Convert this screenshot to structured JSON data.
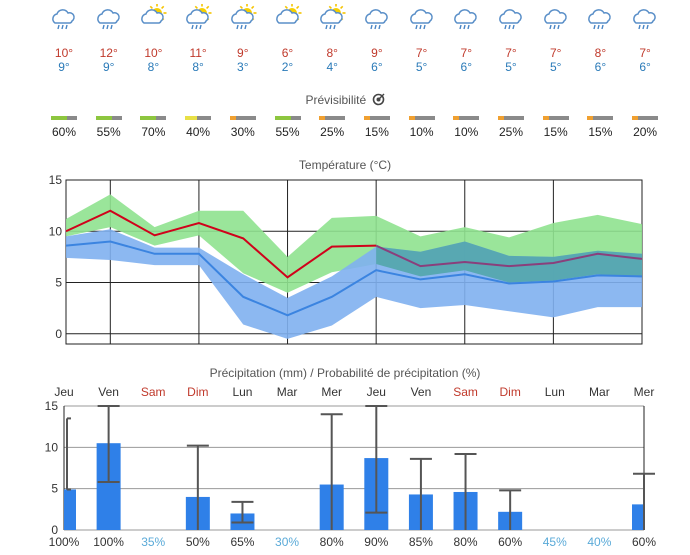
{
  "days": [
    "Jeu",
    "Ven",
    "Sam",
    "Dim",
    "Lun",
    "Mar",
    "Mer",
    "Jeu",
    "Ven",
    "Sam",
    "Dim",
    "Lun",
    "Mar",
    "Mer"
  ],
  "icons": [
    "rain-cloud",
    "rain-cloud",
    "sun-cloud",
    "sun-rain-cloud",
    "sun-rain-cloud",
    "sun-cloud",
    "sun-rain-cloud",
    "rain-cloud",
    "rain-cloud",
    "rain-cloud",
    "rain-cloud",
    "rain-cloud",
    "rain-cloud",
    "rain-cloud"
  ],
  "tmax": [
    "10°",
    "12°",
    "10°",
    "11°",
    "9°",
    "6°",
    "8°",
    "9°",
    "7°",
    "7°",
    "7°",
    "7°",
    "8°",
    "7°"
  ],
  "tmin": [
    "9°",
    "9°",
    "8°",
    "8°",
    "3°",
    "2°",
    "4°",
    "6°",
    "5°",
    "6°",
    "5°",
    "5°",
    "6°",
    "6°"
  ],
  "predictability": {
    "title": "Prévisibilité",
    "percent": [
      "60%",
      "55%",
      "70%",
      "40%",
      "30%",
      "55%",
      "25%",
      "15%",
      "10%",
      "10%",
      "25%",
      "15%",
      "15%",
      "20%"
    ]
  },
  "temperature": {
    "title": "Température (°C)",
    "colors": {
      "max": "#d0021b",
      "min": "#3b84e0",
      "max_band": "#8fe28f",
      "min_band": "#7fb0ef",
      "overlap": "#4aa3a0"
    }
  },
  "precipitation": {
    "title": "Précipitation (mm) / Probabilité de précipitation (%)",
    "probability": [
      "100%",
      "100%",
      "35%",
      "50%",
      "65%",
      "30%",
      "80%",
      "90%",
      "85%",
      "80%",
      "60%",
      "45%",
      "40%",
      "60%"
    ]
  },
  "chart_data": [
    {
      "type": "line",
      "title": "Température (°C)",
      "categories": [
        "Jeu",
        "Ven",
        "Sam",
        "Dim",
        "Lun",
        "Mar",
        "Mer",
        "Jeu",
        "Ven",
        "Sam",
        "Dim",
        "Lun",
        "Mar",
        "Mer"
      ],
      "ylim": [
        -1,
        15
      ],
      "yticks": [
        0,
        5,
        10,
        15
      ],
      "series": [
        {
          "values": [
            10,
            12,
            9.6,
            10.8,
            9.3,
            5.5,
            8.5,
            8.6,
            6.6,
            7,
            6.6,
            6.9,
            7.8,
            7.3
          ]
        },
        {
          "values": [
            8.6,
            9,
            7.8,
            7.8,
            3.6,
            1.8,
            3.6,
            6.2,
            5.3,
            5.8,
            4.9,
            5.1,
            5.7,
            5.6
          ]
        },
        {
          "values_high": [
            11.2,
            13.6,
            10.4,
            12,
            12,
            7.5,
            11.3,
            11.5,
            9.5,
            10.4,
            9.4,
            10.8,
            11.6,
            10.7
          ],
          "values_low": [
            9.5,
            10.4,
            8.6,
            9.6,
            5.9,
            4,
            6,
            6.8,
            5.6,
            6.2,
            5,
            5.2,
            5.8,
            5.5
          ]
        },
        {
          "values_high": [
            9.5,
            10.2,
            8.4,
            8.4,
            5.8,
            3.5,
            5.6,
            8.5,
            8,
            9,
            7.6,
            7.5,
            8.1,
            7.8
          ],
          "values_low": [
            7.4,
            7.2,
            6.7,
            6.7,
            0.9,
            -0.5,
            0.8,
            3.6,
            2.5,
            2.8,
            2.2,
            1.6,
            2.6,
            2.6
          ]
        }
      ]
    },
    {
      "type": "bar",
      "title": "Précipitation (mm) / Probabilité de précipitation (%)",
      "categories": [
        "Jeu",
        "Ven",
        "Sam",
        "Dim",
        "Lun",
        "Mar",
        "Mer",
        "Jeu",
        "Ven",
        "Sam",
        "Dim",
        "Lun",
        "Mar",
        "Mer"
      ],
      "ylim": [
        0,
        15
      ],
      "yticks": [
        0,
        5,
        10,
        15
      ],
      "values": [
        4.9,
        10.5,
        0,
        4,
        2,
        0,
        5.5,
        8.7,
        4.3,
        4.6,
        2.2,
        0,
        0,
        3.1
      ],
      "error_low": [
        4.9,
        5.8,
        0,
        0,
        0.9,
        0,
        0,
        2.1,
        0,
        0,
        0,
        0,
        0,
        0
      ],
      "error_high": [
        13.5,
        15,
        0,
        10.2,
        3.4,
        0,
        14,
        15,
        8.6,
        9.2,
        4.8,
        0,
        0,
        6.8
      ],
      "probability": [
        100,
        100,
        35,
        50,
        65,
        30,
        80,
        90,
        85,
        80,
        60,
        45,
        40,
        60
      ]
    }
  ]
}
